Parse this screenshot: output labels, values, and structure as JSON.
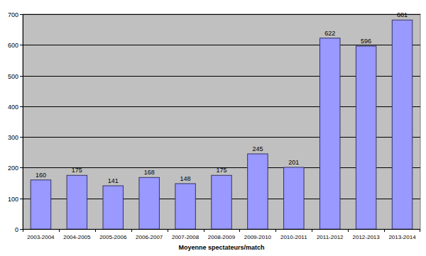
{
  "chart_data": {
    "type": "bar",
    "x_label": "Moyenne spectateurs/match",
    "categories": [
      "2003-2004",
      "2004-2005",
      "2005-2006",
      "2006-2007",
      "2007-2008",
      "2008-2009",
      "2009-2010",
      "2010-2011",
      "2011-2012",
      "2012-2013",
      "2013-2014"
    ],
    "values": [
      160,
      175,
      141,
      168,
      148,
      175,
      245,
      201,
      622,
      596,
      681
    ],
    "color": "#9999ff",
    "ylim": [
      0,
      700
    ],
    "yticks": [
      0,
      100,
      200,
      300,
      400,
      500,
      600,
      700
    ],
    "grid": true,
    "data_labels": true
  }
}
